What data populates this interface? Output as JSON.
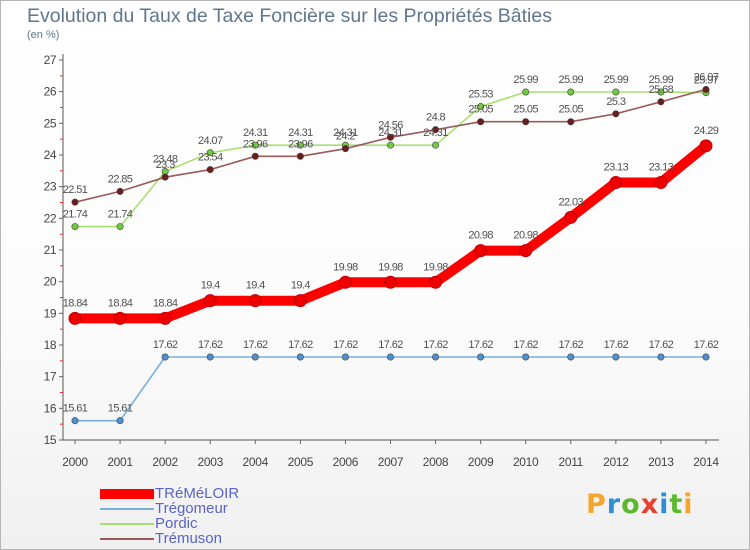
{
  "chart_data": {
    "type": "line",
    "title": "Evolution du Taux de Taxe Foncière sur les Propriétés Bâties",
    "ylabel": "(en %)",
    "xlabel": "",
    "x": [
      2000,
      2001,
      2002,
      2003,
      2004,
      2005,
      2006,
      2007,
      2008,
      2009,
      2010,
      2011,
      2012,
      2013,
      2014
    ],
    "ylim": [
      15,
      27
    ],
    "yticks": [
      15,
      16,
      17,
      18,
      19,
      20,
      21,
      22,
      23,
      24,
      25,
      26,
      27
    ],
    "grid": false,
    "legend": "bottom-left",
    "series": [
      {
        "name": "TRéMéLOIR",
        "line_color": "#ff0000",
        "marker_color": "#ee0000",
        "emphasis": true,
        "values": [
          18.84,
          18.84,
          18.84,
          19.4,
          19.4,
          19.4,
          19.98,
          19.98,
          19.98,
          20.98,
          20.98,
          22.03,
          23.13,
          23.13,
          24.29
        ]
      },
      {
        "name": "Trégomeur",
        "line_color": "#7aaedb",
        "marker_color": "#4f8fd0",
        "emphasis": false,
        "values": [
          15.61,
          15.61,
          17.62,
          17.62,
          17.62,
          17.62,
          17.62,
          17.62,
          17.62,
          17.62,
          17.62,
          17.62,
          17.62,
          17.62,
          17.62
        ]
      },
      {
        "name": "Pordic",
        "line_color": "#a8e070",
        "marker_color": "#70cc3c",
        "emphasis": false,
        "values": [
          21.74,
          21.74,
          23.48,
          24.07,
          24.31,
          24.31,
          24.31,
          24.31,
          24.31,
          25.53,
          25.99,
          25.99,
          25.99,
          25.99,
          25.97
        ]
      },
      {
        "name": "Trémuson",
        "line_color": "#9a5a5a",
        "marker_color": "#6a1e1e",
        "emphasis": false,
        "values": [
          22.51,
          22.85,
          23.3,
          23.54,
          23.96,
          23.96,
          24.2,
          24.56,
          24.8,
          25.05,
          25.05,
          25.05,
          25.3,
          25.68,
          26.07
        ]
      }
    ]
  },
  "logo": {
    "text": "Proxiti",
    "colors": [
      "#f4a62a",
      "#2f8fd6",
      "#5cb82e",
      "#e8402f",
      "#2f8fd6",
      "#5cb82e",
      "#f4a62a"
    ]
  }
}
